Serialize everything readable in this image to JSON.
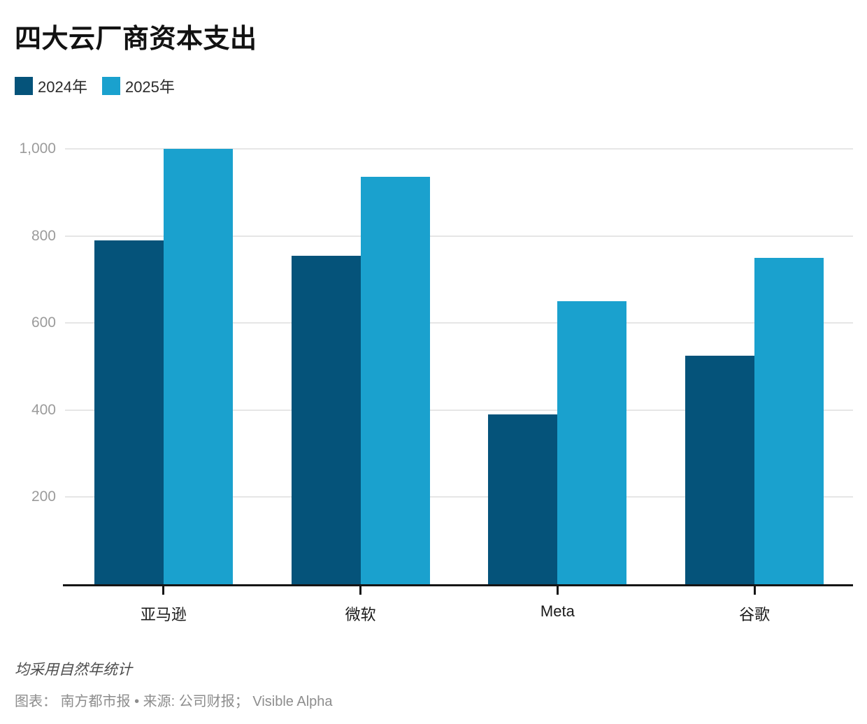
{
  "title": "四大云厂商资本支出",
  "chart_data": {
    "type": "bar",
    "title": "四大云厂商资本支出",
    "categories": [
      "亚马逊",
      "微软",
      "Meta",
      "谷歌"
    ],
    "series": [
      {
        "name": "2024年",
        "color": "#05537A",
        "values": [
          790,
          755,
          390,
          525
        ]
      },
      {
        "name": "2025年",
        "color": "#1AA1CE",
        "values": [
          1000,
          935,
          650,
          750
        ]
      }
    ],
    "xlabel": "",
    "ylabel": "",
    "ylim": [
      0,
      1000
    ],
    "yticks": [
      200,
      400,
      600,
      800,
      1000
    ],
    "ytick_labels": [
      "200",
      "400",
      "600",
      "800",
      "1,000"
    ],
    "grid": true,
    "legend_position": "top-left"
  },
  "legend": {
    "items": [
      {
        "label": "2024年",
        "color": "#05537A"
      },
      {
        "label": "2025年",
        "color": "#1AA1CE"
      }
    ]
  },
  "footer": {
    "note": "均采用自然年统计",
    "source": "图表： 南方都市报 • 来源: 公司财报； Visible Alpha"
  },
  "colors": {
    "series_2024": "#05537A",
    "series_2025": "#1AA1CE",
    "gridline": "#e6e6e6",
    "axis_line": "#151515",
    "ytick_text": "#9b9b9b",
    "category_text": "#1a1a1a",
    "title_text": "#121212",
    "note_text": "#4d4d4d",
    "source_text": "#8d8d8d",
    "background": "#ffffff"
  }
}
